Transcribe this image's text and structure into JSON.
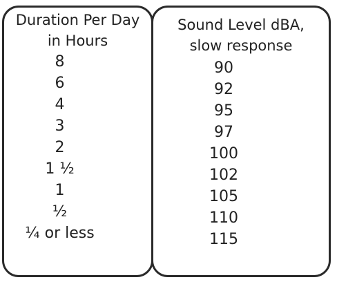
{
  "table": {
    "duration_column": {
      "header_line1": "Duration Per Day",
      "header_line2": "in Hours",
      "values": [
        "8",
        "6",
        "4",
        "3",
        "2",
        "1 ½",
        "1",
        "½",
        "¼ or less"
      ]
    },
    "sound_column": {
      "header_line1": "Sound Level dBA,",
      "header_line2": "slow response",
      "values": [
        "90",
        "92",
        "95",
        "97",
        "100",
        "102",
        "105",
        "110",
        "115"
      ]
    }
  }
}
